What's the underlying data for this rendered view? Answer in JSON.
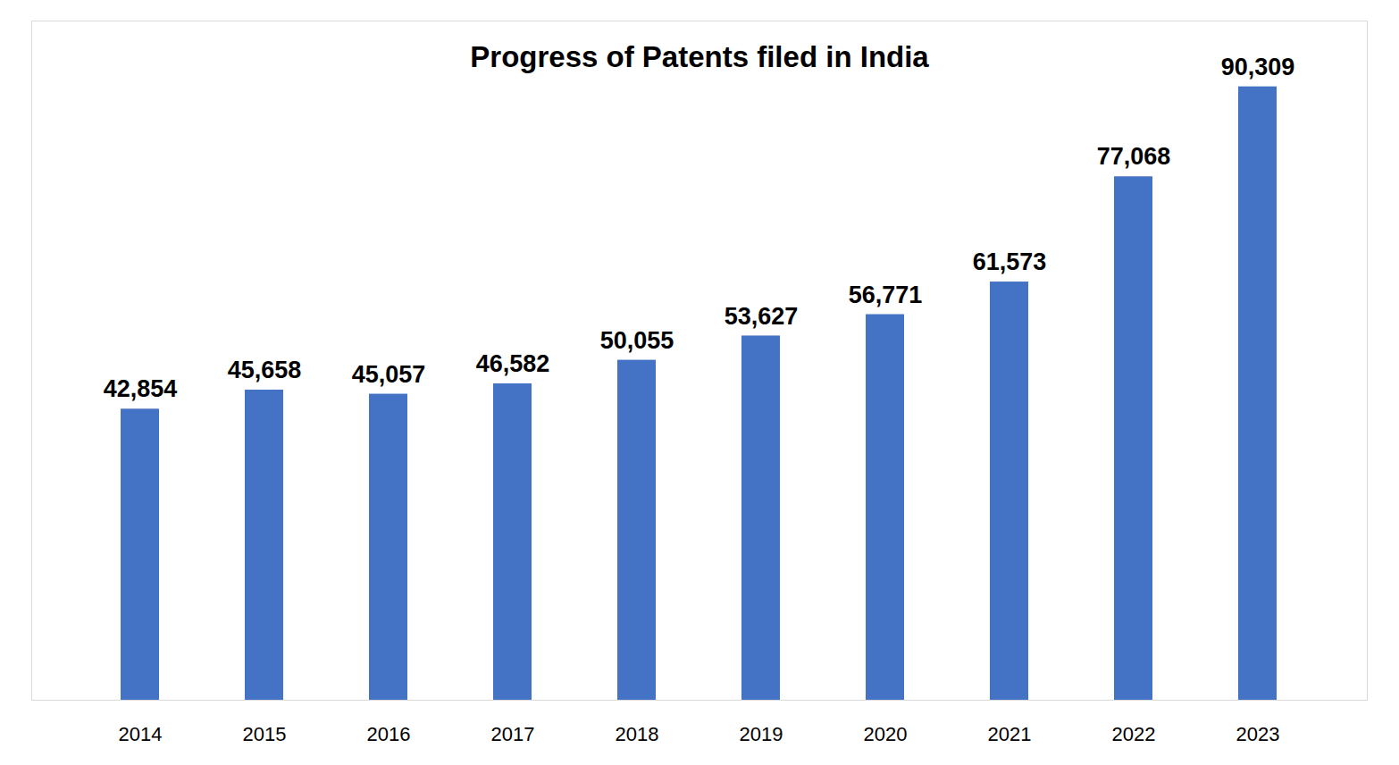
{
  "chart_data": {
    "type": "bar",
    "title": "Progress of Patents filed in India",
    "categories": [
      "2014",
      "2015",
      "2016",
      "2017",
      "2018",
      "2019",
      "2020",
      "2021",
      "2022",
      "2023"
    ],
    "values": [
      42854,
      45658,
      45057,
      46582,
      50055,
      53627,
      56771,
      61573,
      77068,
      90309
    ],
    "value_labels": [
      "42,854",
      "45,658",
      "45,057",
      "46,582",
      "50,055",
      "53,627",
      "56,771",
      "61,573",
      "77,068",
      "90,309"
    ],
    "color": "#4472c4",
    "ylim": [
      0,
      100000
    ],
    "grid": false,
    "data_labels": true,
    "tick_labels": "x"
  }
}
